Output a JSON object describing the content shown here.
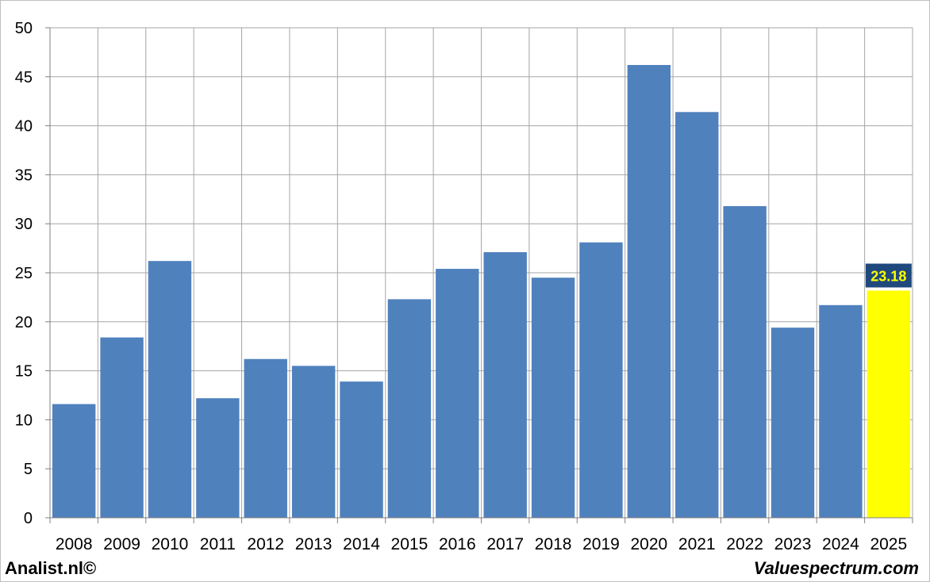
{
  "chart_data": {
    "type": "bar",
    "title": "",
    "xlabel": "",
    "ylabel": "",
    "categories": [
      "2008",
      "2009",
      "2010",
      "2011",
      "2012",
      "2013",
      "2014",
      "2015",
      "2016",
      "2017",
      "2018",
      "2019",
      "2020",
      "2021",
      "2022",
      "2023",
      "2024",
      "2025"
    ],
    "values": [
      11.6,
      18.4,
      26.2,
      12.2,
      16.2,
      15.5,
      13.9,
      22.3,
      25.4,
      27.1,
      24.5,
      28.1,
      46.2,
      41.4,
      31.8,
      19.4,
      21.7,
      23.18
    ],
    "ylim": [
      0,
      50
    ],
    "yticks": [
      0,
      5,
      10,
      15,
      20,
      25,
      30,
      35,
      40,
      45,
      50
    ],
    "grid": true,
    "legend": "none",
    "bar_color": "#4f81bd",
    "highlight_color": "#ffff00",
    "highlight_category": "2025",
    "data_label": {
      "category": "2025",
      "text": "23.18",
      "bg_color": "#1f497d",
      "text_color": "#ffff00"
    }
  },
  "footer": {
    "left": "Analist.nl©",
    "right": "Valuespectrum.com"
  }
}
